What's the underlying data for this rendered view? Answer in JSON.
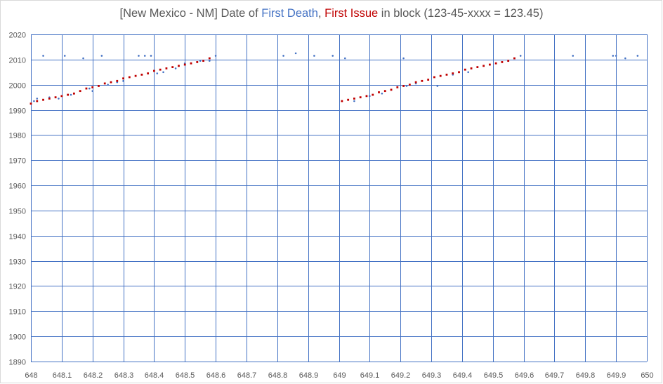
{
  "title": {
    "prefix": "[New Mexico - NM] Date of ",
    "death_label": "First Death",
    "separator": ", ",
    "issue_label": "First Issue",
    "suffix": " in block (123-45-xxxx = 123.45)"
  },
  "chart_data": {
    "type": "scatter",
    "title": "[New Mexico - NM] Date of First Death, First Issue in block (123-45-xxxx = 123.45)",
    "xlabel": "",
    "ylabel": "",
    "xlim": [
      648,
      650
    ],
    "ylim": [
      1890,
      2020
    ],
    "x_ticks": [
      648,
      648.1,
      648.2,
      648.3,
      648.4,
      648.5,
      648.6,
      648.7,
      648.8,
      648.9,
      649,
      649.1,
      649.2,
      649.3,
      649.4,
      649.5,
      649.6,
      649.7,
      649.8,
      649.9,
      650
    ],
    "x_tick_labels": [
      "648",
      "648.1",
      "648.2",
      "648.3",
      "648.4",
      "648.5",
      "648.6",
      "648.7",
      "648.8",
      "648.9",
      "649",
      "649.1",
      "649.2",
      "649.3",
      "649.4",
      "649.5",
      "649.6",
      "649.7",
      "649.8",
      "649.9",
      "650"
    ],
    "y_ticks": [
      1890,
      1900,
      1910,
      1920,
      1930,
      1940,
      1950,
      1960,
      1970,
      1980,
      1990,
      2000,
      2010,
      2020
    ],
    "grid": true,
    "legend": "none",
    "series": [
      {
        "name": "First Death",
        "color": "#4472c4",
        "points": [
          [
            648.01,
            1993.5
          ],
          [
            648.02,
            1994.5
          ],
          [
            648.04,
            2011.5
          ],
          [
            648.06,
            1995
          ],
          [
            648.09,
            1994.5
          ],
          [
            648.11,
            2011.5
          ],
          [
            648.13,
            1996
          ],
          [
            648.14,
            1996.5
          ],
          [
            648.17,
            2010.5
          ],
          [
            648.19,
            1998.5
          ],
          [
            648.2,
            1997.5
          ],
          [
            648.23,
            2011.5
          ],
          [
            648.25,
            2000
          ],
          [
            648.28,
            2001
          ],
          [
            648.3,
            2001.5
          ],
          [
            648.35,
            2011.5
          ],
          [
            648.37,
            2011.5
          ],
          [
            648.39,
            2011.5
          ],
          [
            648.41,
            2004.5
          ],
          [
            648.43,
            2005
          ],
          [
            648.47,
            2006.5
          ],
          [
            648.5,
            2008.5
          ],
          [
            648.55,
            2009.5
          ],
          [
            648.58,
            2009.5
          ],
          [
            648.6,
            2011.5
          ],
          [
            648.82,
            2011.5
          ],
          [
            648.86,
            2012.5
          ],
          [
            648.92,
            2011.5
          ],
          [
            648.98,
            2011.5
          ],
          [
            649.02,
            2010.5
          ],
          [
            649.05,
            1993.5
          ],
          [
            649.1,
            1995.5
          ],
          [
            649.14,
            1996.5
          ],
          [
            649.21,
            2010.5
          ],
          [
            649.22,
            1999.5
          ],
          [
            649.25,
            2000.5
          ],
          [
            649.32,
            1999.5
          ],
          [
            649.37,
            2004
          ],
          [
            649.42,
            2005
          ],
          [
            649.59,
            2011.5
          ],
          [
            649.76,
            2011.5
          ],
          [
            649.89,
            2011.5
          ],
          [
            649.9,
            2011.5
          ],
          [
            649.93,
            2010.5
          ],
          [
            649.97,
            2011.5
          ]
        ]
      },
      {
        "name": "First Issue",
        "color": "#c00000",
        "points": [
          [
            648.0,
            1992.5
          ],
          [
            648.02,
            1993.5
          ],
          [
            648.04,
            1994
          ],
          [
            648.06,
            1994.5
          ],
          [
            648.08,
            1995
          ],
          [
            648.1,
            1995.5
          ],
          [
            648.12,
            1996
          ],
          [
            648.14,
            1996.5
          ],
          [
            648.16,
            1997.5
          ],
          [
            648.18,
            1998.5
          ],
          [
            648.2,
            1999
          ],
          [
            648.22,
            1999.5
          ],
          [
            648.24,
            2000.5
          ],
          [
            648.26,
            2001
          ],
          [
            648.28,
            2001.5
          ],
          [
            648.3,
            2002.5
          ],
          [
            648.32,
            2003
          ],
          [
            648.34,
            2003.5
          ],
          [
            648.36,
            2004
          ],
          [
            648.38,
            2004.5
          ],
          [
            648.4,
            2005.5
          ],
          [
            648.42,
            2006
          ],
          [
            648.44,
            2006.5
          ],
          [
            648.46,
            2007
          ],
          [
            648.48,
            2007.5
          ],
          [
            648.5,
            2008
          ],
          [
            648.52,
            2008.5
          ],
          [
            648.54,
            2009
          ],
          [
            648.56,
            2009.5
          ],
          [
            648.58,
            2010.5
          ],
          [
            649.01,
            1993.5
          ],
          [
            649.03,
            1994
          ],
          [
            649.05,
            1994.5
          ],
          [
            649.07,
            1995
          ],
          [
            649.09,
            1995.5
          ],
          [
            649.11,
            1996
          ],
          [
            649.13,
            1997
          ],
          [
            649.15,
            1997.5
          ],
          [
            649.17,
            1998
          ],
          [
            649.19,
            1999
          ],
          [
            649.21,
            1999.5
          ],
          [
            649.23,
            2000
          ],
          [
            649.25,
            2001
          ],
          [
            649.27,
            2001.5
          ],
          [
            649.29,
            2002
          ],
          [
            649.31,
            2003
          ],
          [
            649.33,
            2003.5
          ],
          [
            649.35,
            2004
          ],
          [
            649.37,
            2004.5
          ],
          [
            649.39,
            2005
          ],
          [
            649.41,
            2006
          ],
          [
            649.43,
            2006.5
          ],
          [
            649.45,
            2007
          ],
          [
            649.47,
            2007.5
          ],
          [
            649.49,
            2008
          ],
          [
            649.51,
            2008.5
          ],
          [
            649.53,
            2009
          ],
          [
            649.55,
            2009.5
          ],
          [
            649.57,
            2010.5
          ]
        ]
      }
    ]
  }
}
